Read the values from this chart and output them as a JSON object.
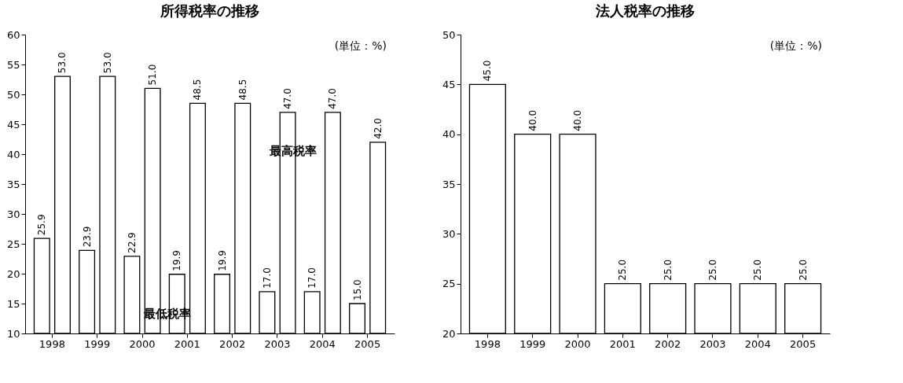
{
  "chart_data": [
    {
      "type": "bar",
      "title": "所得税率の推移",
      "categories": [
        "1998",
        "1999",
        "2000",
        "2001",
        "2002",
        "2003",
        "2004",
        "2005"
      ],
      "series": [
        {
          "name": "最低税率",
          "color": "#ffffff",
          "values": [
            25.9,
            23.9,
            22.9,
            19.9,
            19.9,
            17.0,
            17.0,
            15.0
          ],
          "value_labels": [
            "25.9",
            "23.9",
            "22.9",
            "19.9",
            "19.9",
            "17.0",
            "17.0",
            "15.0"
          ]
        },
        {
          "name": "最高税率",
          "color": "#ffffff",
          "values": [
            53.0,
            53.0,
            51.0,
            48.5,
            48.5,
            47.0,
            47.0,
            42.0
          ],
          "value_labels": [
            "53.0",
            "53.0",
            "51.0",
            "48.5",
            "48.5",
            "47.0",
            "47.0",
            "42.0"
          ]
        }
      ],
      "ylim": [
        10,
        60
      ],
      "yticks": [
        10,
        15,
        20,
        25,
        30,
        35,
        40,
        45,
        50,
        55,
        60
      ],
      "grid": false,
      "legend": false,
      "annotations": [
        "(単位：%)"
      ]
    },
    {
      "type": "bar",
      "title": "法人税率の推移",
      "categories": [
        "1998",
        "1999",
        "2000",
        "2001",
        "2002",
        "2003",
        "2004",
        "2005"
      ],
      "values": [
        45.0,
        40.0,
        40.0,
        25.0,
        25.0,
        25.0,
        25.0,
        25.0
      ],
      "value_labels": [
        "45.0",
        "40.0",
        "40.0",
        "25.0",
        "25.0",
        "25.0",
        "25.0",
        "25.0"
      ],
      "color": "#ffffff",
      "ylim": [
        20,
        50
      ],
      "yticks": [
        20,
        25,
        30,
        35,
        40,
        45,
        50
      ],
      "grid": false,
      "legend": false,
      "annotations": [
        "(単位：%)"
      ]
    }
  ]
}
